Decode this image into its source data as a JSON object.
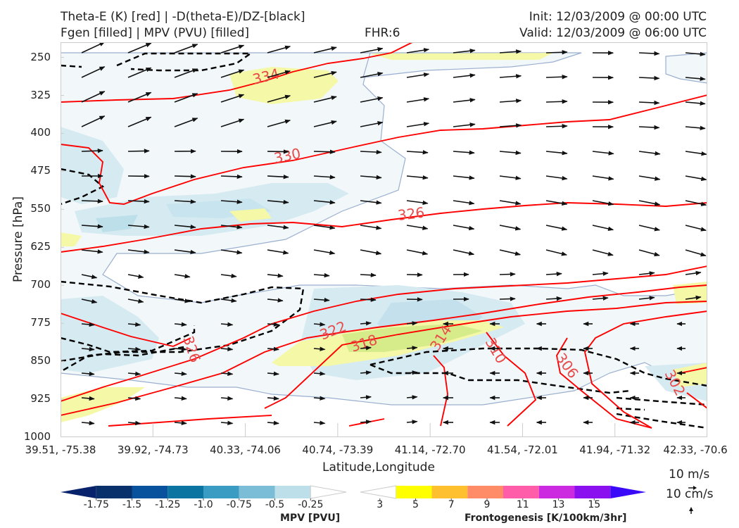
{
  "header": {
    "title_left_1": "Theta-E (K) [red] | -D(theta-E)/DZ-[black]",
    "title_left_2": "Fgen [filled] | MPV (PVU) [filled]",
    "fhr": "FHR:6",
    "init": "Init: 12/03/2009 @ 00:00 UTC",
    "valid": "Valid: 12/03/2009 @ 06:00 UTC"
  },
  "chart_data": {
    "type": "cross-section",
    "xlabel": "Latitude,Longitude",
    "ylabel": "Pressure [hPa]",
    "x_ticks": [
      "39.51, -75.38",
      "39.92, -74.73",
      "40.33, -74.06",
      "40.74, -73.39",
      "41.14, -72.70",
      "41.54, -72.01",
      "41.94, -71.32",
      "42.33, -70.6"
    ],
    "y_ticks": [
      250,
      325,
      400,
      475,
      550,
      625,
      700,
      775,
      850,
      925,
      1000
    ],
    "ylim": [
      1000,
      220
    ],
    "theta_e_contours": [
      {
        "label": "334",
        "value": 334
      },
      {
        "label": "330",
        "value": 330
      },
      {
        "label": "326",
        "value": 326
      },
      {
        "label": "326",
        "value": 326
      },
      {
        "label": "322",
        "value": 322
      },
      {
        "label": "318",
        "value": 318
      },
      {
        "label": "314",
        "value": 314
      },
      {
        "label": "310",
        "value": 310
      },
      {
        "label": "306",
        "value": 306
      },
      {
        "label": "302",
        "value": 302
      }
    ],
    "colors": {
      "theta_e": "#ff0000",
      "stability": "#000000",
      "label": "#e74b4b",
      "mpv_outline": "#9aafcf"
    }
  },
  "mpv_colorbar": {
    "label": "MPV [PVU]",
    "ticks": [
      "-1.75",
      "-1.5",
      "-1.25",
      "-1.0",
      "-0.75",
      "-0.5",
      "-0.25"
    ],
    "colors": [
      "#08236b",
      "#08306b",
      "#08519c",
      "#0c74a0",
      "#3a9cc2",
      "#7bbcd6",
      "#bddfea",
      "#ffffff"
    ]
  },
  "fgen_colorbar": {
    "label": "Frontogenesis [K/100km/3hr]",
    "ticks": [
      "3",
      "5",
      "7",
      "9",
      "11",
      "13",
      "15"
    ],
    "colors": [
      "#ffffff",
      "#ffff00",
      "#ffc030",
      "#ff8c66",
      "#ff5caa",
      "#cc2ae0",
      "#8a10f0",
      "#3a0af8"
    ]
  },
  "wind_key": {
    "horizontal": "10 m/s",
    "vertical": "10 cm/s"
  }
}
